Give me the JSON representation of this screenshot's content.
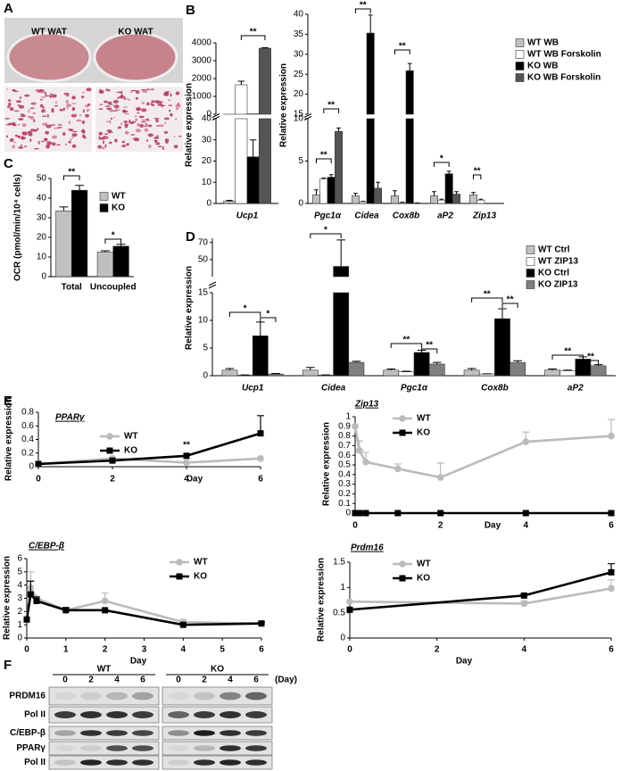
{
  "panels": [
    "A",
    "B",
    "C",
    "D",
    "E",
    "F"
  ],
  "photos": {
    "labels": [
      "WT WAT",
      "KO WAT"
    ]
  },
  "chart_data": [
    {
      "type": "bar",
      "categories": [
        "Ucp1"
      ],
      "series": [
        {
          "color": "#c0c0c0",
          "values": [
            1
          ],
          "errors": [
            0.5
          ]
        },
        {
          "color": "#ffffff",
          "values": [
            1650
          ],
          "errors": [
            200
          ]
        },
        {
          "color": "#000000",
          "values": [
            22
          ],
          "errors": [
            8
          ]
        },
        {
          "color": "#555555",
          "values": [
            3700
          ],
          "errors": [
            30
          ]
        }
      ],
      "segments": [
        {
          "ylim": [
            0,
            40
          ],
          "yticks": [
            0,
            10,
            20,
            30,
            40
          ]
        },
        {
          "ylim": [
            0,
            4000
          ],
          "yticks": [
            0,
            1000,
            2000,
            3000,
            4000
          ]
        }
      ],
      "ylabel": "Relative expression",
      "annotations": [
        "**"
      ]
    },
    {
      "type": "bar",
      "categories": [
        "Pgc1α",
        "Cidea",
        "Cox8b",
        "aP2",
        "Zip13"
      ],
      "series": [
        {
          "name": "WT WB",
          "color": "#c0c0c0",
          "values": [
            1.0,
            0.9,
            0.9,
            0.9,
            1.0
          ],
          "errors": [
            0.6,
            0.3,
            0.6,
            0.5,
            0.3
          ]
        },
        {
          "name": "WT WB Forskolin",
          "color": "#ffffff",
          "values": [
            2.9,
            0.2,
            0.1,
            0.4,
            0.4
          ],
          "errors": [
            0.1,
            0.05,
            0.05,
            0.1,
            0.1
          ]
        },
        {
          "name": "KO WB",
          "color": "#000000",
          "values": [
            3.1,
            35.3,
            25.9,
            3.5,
            0
          ],
          "errors": [
            0.3,
            4.5,
            1.8,
            0.3,
            null
          ]
        },
        {
          "name": "KO WB Forskolin",
          "color": "#555555",
          "values": [
            8.5,
            1.8,
            0.05,
            1.1,
            0
          ],
          "errors": [
            0.4,
            0.7,
            0.02,
            0.3,
            null
          ]
        }
      ],
      "segments": [
        {
          "ylim": [
            0,
            10
          ],
          "yticks": [
            0,
            5,
            10
          ]
        },
        {
          "ylim": [
            15,
            40
          ],
          "yticks": [
            15,
            20,
            25,
            30,
            35,
            40
          ]
        }
      ],
      "ylabel": "Relative expression",
      "legend": "upper right",
      "annotations": [
        "**",
        "**",
        "**",
        "**",
        "*",
        "**"
      ]
    },
    {
      "type": "bar",
      "categories": [
        "Total",
        "Uncoupled"
      ],
      "series": [
        {
          "name": "WT",
          "color": "#c0c0c0",
          "values": [
            33.5,
            12.5
          ],
          "errors": [
            2,
            0.7
          ]
        },
        {
          "name": "KO",
          "color": "#000000",
          "values": [
            44,
            15.5
          ],
          "errors": [
            2.5,
            1
          ]
        }
      ],
      "ylim": [
        0,
        50
      ],
      "yticks": [
        0,
        10,
        20,
        30,
        40,
        50
      ],
      "ylabel": "OCR (pmol/min/10⁴ cells)",
      "legend": "upper right",
      "annotations": [
        "**",
        "*"
      ]
    },
    {
      "type": "bar",
      "categories": [
        "Ucp1",
        "Cidea",
        "Pgc1α",
        "Cox8b",
        "aP2"
      ],
      "series": [
        {
          "name": "WT Ctrl",
          "color": "#c0c0c0",
          "values": [
            1,
            1,
            1,
            1,
            1
          ],
          "errors": [
            0.3,
            0.5,
            0.2,
            0.3,
            0.2
          ]
        },
        {
          "name": "WT ZIP13",
          "color": "#ffffff",
          "values": [
            0.1,
            0.1,
            0.7,
            0.3,
            0.9
          ],
          "errors": [
            0.05,
            0.05,
            0.1,
            0.05,
            0.1
          ]
        },
        {
          "name": "KO Ctrl",
          "color": "#000000",
          "values": [
            7.2,
            42,
            4.2,
            10.3,
            3.0
          ],
          "errors": [
            2.5,
            31,
            0.4,
            1.8,
            0.4
          ]
        },
        {
          "name": "KO ZIP13",
          "color": "#808080",
          "values": [
            0.3,
            2.4,
            2.1,
            2.4,
            1.8
          ],
          "errors": [
            0.1,
            0.2,
            0.3,
            0.3,
            0.2
          ]
        }
      ],
      "segments": [
        {
          "ylim": [
            0,
            15
          ],
          "yticks": [
            0,
            5,
            10,
            15
          ]
        },
        {
          "ylim": [
            30,
            75
          ],
          "yticks": [
            50,
            70
          ]
        }
      ],
      "ylabel": "Relative expression",
      "legend": "upper right",
      "annotations": [
        "*",
        "*",
        "*",
        "**",
        "**",
        "**",
        "**",
        "**",
        "**"
      ]
    },
    {
      "type": "line",
      "title": "PPARγ",
      "x": [
        0,
        2,
        4,
        6
      ],
      "series": [
        {
          "name": "WT",
          "color": "#bbbbbb",
          "marker": "circle",
          "values": [
            0.04,
            0.12,
            0.06,
            0.12
          ],
          "errors": [
            null,
            null,
            null,
            null
          ]
        },
        {
          "name": "KO",
          "color": "#000000",
          "marker": "square",
          "values": [
            0.04,
            0.09,
            0.16,
            0.49
          ],
          "errors": [
            null,
            null,
            null,
            0.26
          ]
        }
      ],
      "xlim": [
        0,
        6
      ],
      "xticks": [
        0,
        2,
        4,
        6
      ],
      "ylim": [
        0,
        0.8
      ],
      "yticks": [
        0,
        0.2,
        0.4,
        0.6,
        0.8
      ],
      "xlabel": "Day",
      "ylabel": "Relative expression",
      "legend": "upper left",
      "annotations": [
        "**"
      ]
    },
    {
      "type": "line",
      "title": "Zip13",
      "x": [
        0,
        0.1,
        0.25,
        1,
        2,
        4,
        6
      ],
      "series": [
        {
          "name": "WT",
          "color": "#bbbbbb",
          "marker": "circle",
          "values": [
            0.9,
            0.65,
            0.53,
            0.46,
            0.37,
            0.74,
            0.8
          ],
          "errors": [
            null,
            0.1,
            0.1,
            0.05,
            0.15,
            0.1,
            0.17
          ]
        },
        {
          "name": "KO",
          "color": "#000000",
          "marker": "square",
          "values": [
            0,
            0,
            0,
            0,
            0,
            0,
            0
          ],
          "errors": [
            null,
            null,
            null,
            null,
            null,
            null,
            null
          ]
        }
      ],
      "xlim": [
        0,
        6
      ],
      "xticks": [
        0,
        2,
        4,
        6
      ],
      "ylim": [
        0,
        1
      ],
      "yticks": [
        0,
        0.1,
        0.2,
        0.3,
        0.4,
        0.5,
        0.6,
        0.7,
        0.8,
        0.9,
        1
      ],
      "xlabel": "Day",
      "ylabel": "Relative expression",
      "legend": "upper left"
    },
    {
      "type": "line",
      "title": "C/EBP-β",
      "x": [
        0,
        0.1,
        0.25,
        1,
        2,
        4,
        6
      ],
      "series": [
        {
          "name": "WT",
          "color": "#bbbbbb",
          "marker": "circle",
          "values": [
            1.4,
            3.8,
            3.0,
            2.1,
            2.8,
            1.2,
            1.1
          ],
          "errors": [
            null,
            1.2,
            null,
            null,
            0.6,
            0.2,
            null
          ]
        },
        {
          "name": "KO",
          "color": "#000000",
          "marker": "square",
          "values": [
            1.4,
            3.3,
            2.8,
            2.1,
            2.1,
            1.0,
            1.1
          ],
          "errors": [
            null,
            1.0,
            0.3,
            0.2,
            null,
            null,
            0.1
          ]
        }
      ],
      "xlim": [
        0,
        6
      ],
      "xticks": [
        0,
        1,
        2,
        3,
        4,
        5,
        6
      ],
      "ylim": [
        0,
        6
      ],
      "yticks": [
        0,
        1,
        2,
        3,
        4,
        5,
        6
      ],
      "xlabel": "Day",
      "ylabel": "Relative expression",
      "legend": "upper right"
    },
    {
      "type": "line",
      "title": "Prdm16",
      "x": [
        0,
        4,
        6
      ],
      "series": [
        {
          "name": "WT",
          "color": "#bbbbbb",
          "marker": "circle",
          "values": [
            0.72,
            0.68,
            0.98
          ],
          "errors": [
            null,
            0.05,
            0.17
          ]
        },
        {
          "name": "KO",
          "color": "#000000",
          "marker": "square",
          "values": [
            0.56,
            0.84,
            1.3
          ],
          "errors": [
            null,
            0.03,
            0.17
          ]
        }
      ],
      "xlim": [
        0,
        6
      ],
      "xticks": [
        0,
        2,
        4,
        6
      ],
      "ylim": [
        0,
        1.5
      ],
      "yticks": [
        0,
        0.5,
        1,
        1.5
      ],
      "xlabel": "Day",
      "ylabel": "Relative expression",
      "legend": "upper left"
    }
  ],
  "blot": {
    "groups": [
      "WT",
      "KO"
    ],
    "lanes": [
      0,
      2,
      4,
      6
    ],
    "unit": "(Day)",
    "rows": [
      "PRDM16",
      "Pol II",
      "C/EBP-β",
      "PPARγ",
      "Pol II"
    ]
  }
}
